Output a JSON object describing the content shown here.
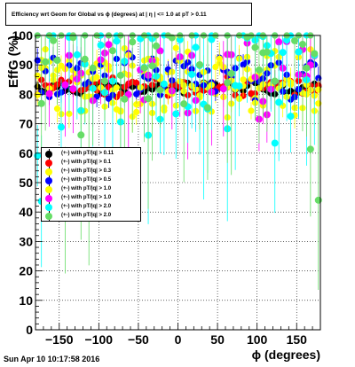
{
  "title": "Efficiency wrt Geom for Global vs ϕ (degrees) at | η | <= 1.0 at pT > 0.11",
  "timestamp": "Sun Apr 10 10:17:58 2016",
  "legend_entries": [
    {
      "label": "(+-) with pT/|q| > 0.11",
      "color": "#000000"
    },
    {
      "label": "(+-) with pT/|q| > 0.1",
      "color": "#ff0000"
    },
    {
      "label": "(+-) with pT/|q| > 0.3",
      "color": "#ffff00"
    },
    {
      "label": "(+-) with pT/|q| > 0.5",
      "color": "#0000ff"
    },
    {
      "label": "(+-) with pT/|q| > 1.0",
      "color": "#ffff00"
    },
    {
      "label": "(+-) with pT/|q| > 1.0",
      "color": "#ff00ff"
    },
    {
      "label": "(+-) with pT/|q| > 2.0",
      "color": "#00ffff"
    },
    {
      "label": "(+-) with pT/|q| > 2.0",
      "color": "#66dd66"
    }
  ],
  "chart_data": {
    "type": "scatter",
    "xlabel": "ϕ (degrees)",
    "ylabel": "EffG (%)",
    "xlim": [
      -180,
      180
    ],
    "ylim": [
      0,
      100
    ],
    "x_ticks": [
      -150,
      -100,
      -50,
      0,
      50,
      100,
      150
    ],
    "y_ticks": [
      0,
      10,
      20,
      30,
      40,
      50,
      60,
      70,
      80,
      90,
      100
    ],
    "grid": true,
    "legend_position": "middle-left",
    "series": [
      {
        "name": "(+-) with pT/|q| > 0.11",
        "color": "#000000",
        "band": [
          80,
          84
        ],
        "seed": 11
      },
      {
        "name": "(+-) with pT/|q| > 0.1",
        "color": "#ff0000",
        "band": [
          79,
          86
        ],
        "seed": 23
      },
      {
        "name": "(+-) with pT/|q| > 0.3",
        "color": "#ffff00",
        "band": [
          74,
          92
        ],
        "seed": 37
      },
      {
        "name": "(+-) with pT/|q| > 0.5",
        "color": "#0000ff",
        "band": [
          78,
          94
        ],
        "seed": 41
      },
      {
        "name": "(+-) with pT/|q| > 1.0",
        "color": "#ffff00",
        "band": [
          72,
          96
        ],
        "seed": 53
      },
      {
        "name": "(+-) with pT/|q| > 1.0",
        "color": "#ff00ff",
        "band": [
          55,
          98
        ],
        "seed": 67
      },
      {
        "name": "(+-) with pT/|q| > 2.0",
        "color": "#00ffff",
        "band": [
          35,
          100
        ],
        "seed": 71
      },
      {
        "name": "(+-) with pT/|q| > 2.0",
        "color": "#66dd66",
        "band": [
          25,
          100
        ],
        "seed": 89
      }
    ]
  }
}
